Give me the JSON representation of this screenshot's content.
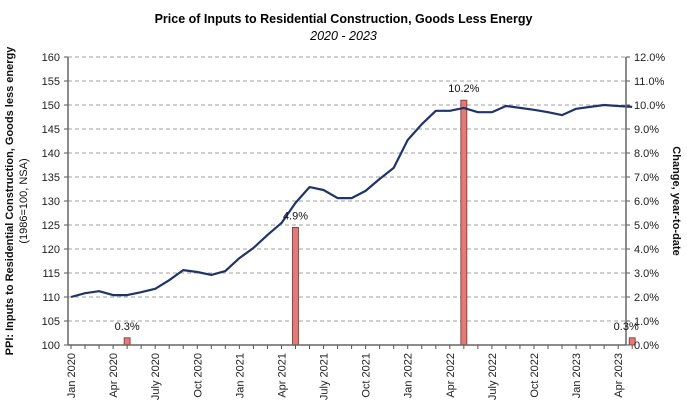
{
  "chart_data": {
    "type": "line+bar",
    "title": "Price of Inputs to Residential Construction, Goods Less Energy",
    "subtitle": "2020 - 2023",
    "ylabel_left": "PPI: Inputs to Residential Construction, Goods less energy",
    "ylabel_left_sub": "(1986=100, NSA)",
    "ylabel_right": "Change, year-to-date",
    "ylim_left": [
      100,
      160
    ],
    "yticks_left": [
      "100",
      "105",
      "110",
      "115",
      "120",
      "125",
      "130",
      "135",
      "140",
      "145",
      "150",
      "155",
      "160"
    ],
    "ylim_right": [
      0,
      12
    ],
    "yticks_right": [
      "0.0%",
      "1.0%",
      "2.0%",
      "3.0%",
      "4.0%",
      "5.0%",
      "6.0%",
      "7.0%",
      "8.0%",
      "9.0%",
      "10.0%",
      "11.0%",
      "12.0%"
    ],
    "xtick_labels": [
      "Jan 2020",
      "Apr 2020",
      "July 2020",
      "Oct 2020",
      "Jan 2021",
      "Apr 2021",
      "July 2021",
      "Oct 2021",
      "Jan 2022",
      "Apr 2022",
      "July 2022",
      "Oct 2022",
      "Jan 2023",
      "Apr 2023"
    ],
    "months": [
      "2020-01",
      "2020-02",
      "2020-03",
      "2020-04",
      "2020-05",
      "2020-06",
      "2020-07",
      "2020-08",
      "2020-09",
      "2020-10",
      "2020-11",
      "2020-12",
      "2021-01",
      "2021-02",
      "2021-03",
      "2021-04",
      "2021-05",
      "2021-06",
      "2021-07",
      "2021-08",
      "2021-09",
      "2021-10",
      "2021-11",
      "2021-12",
      "2022-01",
      "2022-02",
      "2022-03",
      "2022-04",
      "2022-05",
      "2022-06",
      "2022-07",
      "2022-08",
      "2022-09",
      "2022-10",
      "2022-11",
      "2022-12",
      "2023-01",
      "2023-02",
      "2023-03",
      "2023-04",
      "2023-05"
    ],
    "grid": true,
    "series": [
      {
        "name": "PPI: Inputs to Residential Construction, Goods less energy",
        "type": "line",
        "axis": "left",
        "color": "#1f3468",
        "values": [
          110.0,
          110.8,
          111.2,
          110.4,
          110.4,
          111.0,
          111.7,
          113.5,
          115.6,
          115.2,
          114.6,
          115.4,
          118.1,
          120.2,
          122.9,
          125.4,
          129.6,
          132.9,
          132.3,
          130.6,
          130.6,
          132.1,
          134.6,
          136.9,
          142.7,
          146.0,
          148.8,
          148.8,
          149.4,
          148.5,
          148.5,
          149.8,
          149.4,
          149.0,
          148.5,
          147.9,
          149.2,
          149.6,
          150.0,
          149.8,
          149.6
        ]
      },
      {
        "name": "Change, year-to-date",
        "type": "bar",
        "axis": "right",
        "color": "#e07b78",
        "points": [
          {
            "month_index": 4,
            "value": 0.3,
            "label": "0.3%"
          },
          {
            "month_index": 16,
            "value": 4.9,
            "label": "4.9%"
          },
          {
            "month_index": 28,
            "value": 10.2,
            "label": "10.2%"
          },
          {
            "month_index": 40,
            "value": 0.3,
            "label": "0.3%"
          }
        ]
      }
    ]
  }
}
